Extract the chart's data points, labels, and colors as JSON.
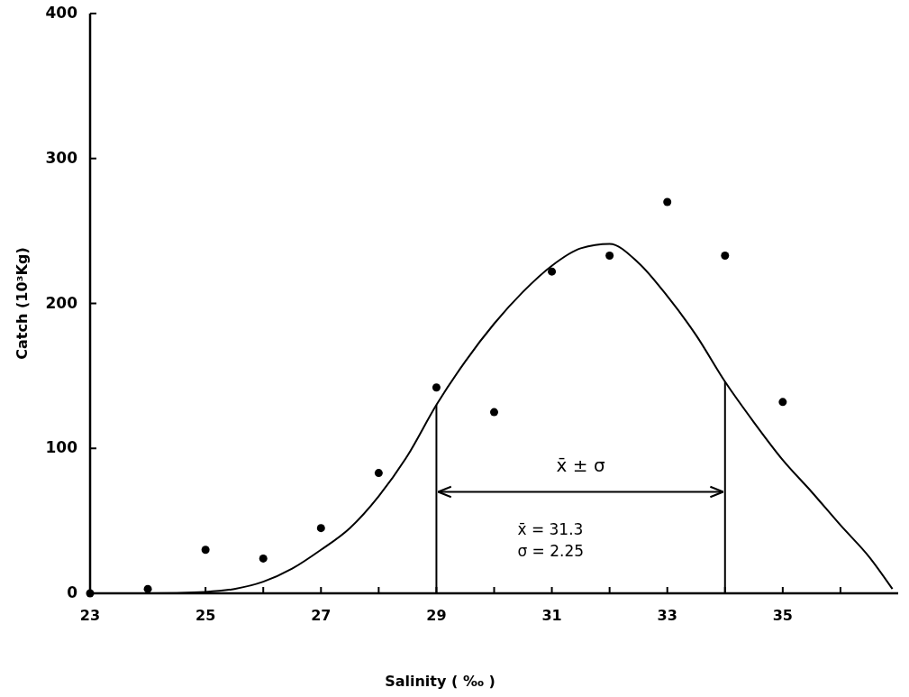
{
  "chart_data": {
    "type": "scatter",
    "xlabel": "Salinity ( ‰ )",
    "ylabel": "Catch (10³Kg)",
    "xlim": [
      23,
      37
    ],
    "ylim": [
      0,
      400
    ],
    "xticks": [
      23,
      {
        "value": 24,
        "label": null
      },
      25,
      {
        "value": 26,
        "label": null
      },
      27,
      {
        "value": 28,
        "label": null
      },
      29,
      {
        "value": 30,
        "label": null
      },
      31,
      {
        "value": 32,
        "label": null
      },
      33,
      {
        "value": 34,
        "label": null
      },
      35,
      {
        "value": 36,
        "label": null
      }
    ],
    "yticks": [
      0,
      100,
      200,
      300,
      400
    ],
    "grid": false,
    "series": [
      {
        "color": "#000000",
        "marker": "circle",
        "x": [
          23,
          24,
          25,
          26,
          27,
          28,
          29,
          30,
          31,
          32,
          33,
          34,
          35
        ],
        "values": [
          0,
          3,
          30,
          24,
          45,
          83,
          142,
          125,
          222,
          233,
          270,
          233,
          132
        ]
      },
      {
        "type": "line",
        "color": "#000000",
        "marker": "none",
        "line_style": "solid",
        "x": [
          23,
          24,
          25,
          25.5,
          26,
          26.5,
          27,
          27.5,
          28,
          28.5,
          29,
          29.5,
          30,
          30.5,
          31,
          31.5,
          32,
          32.5,
          33,
          33.5,
          34,
          34.5,
          35,
          35.5,
          36,
          36.5,
          36.9
        ],
        "values": [
          0,
          0,
          1,
          3,
          8,
          17,
          30,
          45,
          67,
          95,
          130,
          160,
          186,
          208,
          226,
          238,
          241,
          228,
          205,
          178,
          146,
          118,
          92,
          70,
          47,
          25,
          3
        ]
      }
    ],
    "ref_lines": [
      {
        "axis": "x",
        "value": 29
      },
      {
        "axis": "x",
        "value": 34
      }
    ],
    "annotations": [
      "x̄ ± σ",
      "x̄ = 31.3",
      "σ = 2.25"
    ]
  }
}
